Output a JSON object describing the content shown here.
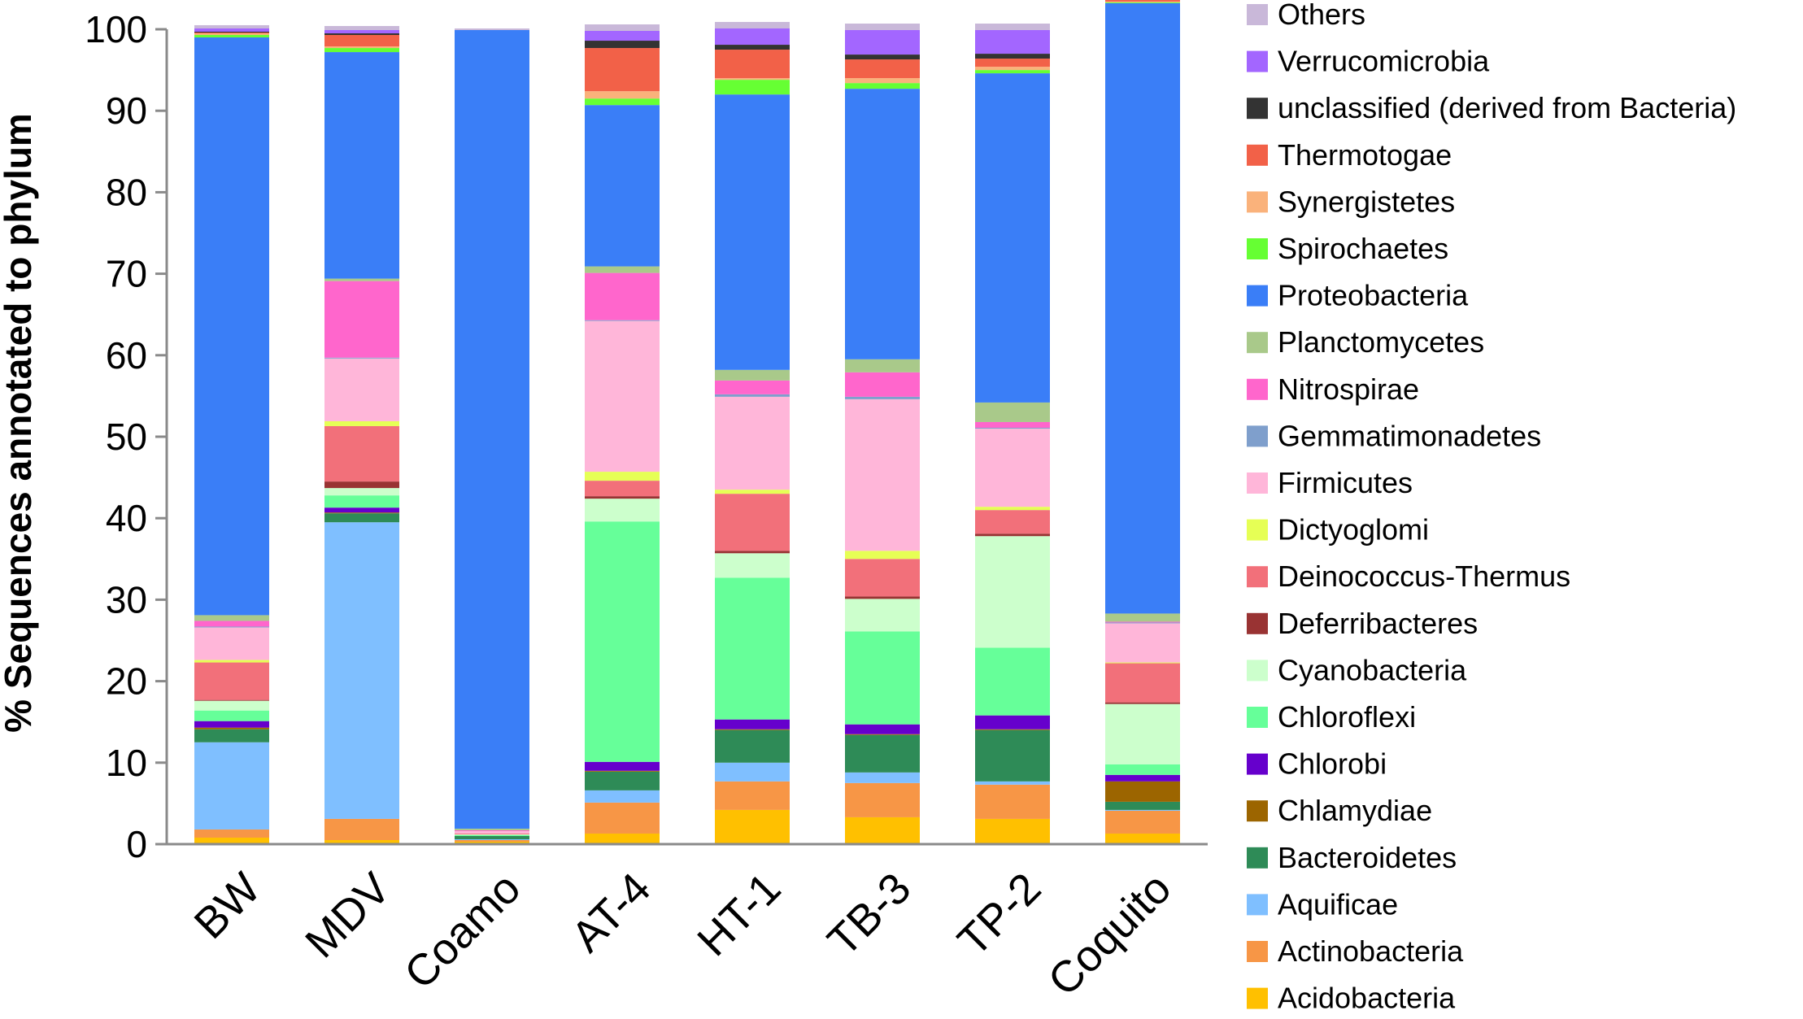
{
  "chart_data": {
    "type": "bar",
    "stacked": true,
    "title": "",
    "xlabel": "",
    "ylabel": "% Sequences annotated to phylum",
    "ylim": [
      0,
      100
    ],
    "yticks": [
      0,
      10,
      20,
      30,
      40,
      50,
      60,
      70,
      80,
      90,
      100
    ],
    "categories": [
      "BW",
      "MDV",
      "Coamo",
      "AT-4",
      "HT-1",
      "TB-3",
      "TP-2",
      "Coquito"
    ],
    "legend_position": "right",
    "series": [
      {
        "name": "Acidobacteria",
        "color": "#FFC000",
        "values": [
          0.8,
          0.5,
          0.3,
          1.3,
          4.2,
          3.3,
          3.1,
          1.3
        ]
      },
      {
        "name": "Actinobacteria",
        "color": "#F79646",
        "values": [
          1.0,
          2.6,
          0.2,
          3.8,
          3.5,
          4.2,
          4.2,
          2.8
        ]
      },
      {
        "name": "Aquificae",
        "color": "#7FBFFF",
        "values": [
          10.7,
          36.4,
          0.1,
          1.5,
          2.3,
          1.3,
          0.4,
          0.1
        ]
      },
      {
        "name": "Bacteroidetes",
        "color": "#2E8B57",
        "values": [
          1.6,
          1.1,
          0.4,
          2.3,
          4.0,
          4.6,
          6.3,
          1.0
        ]
      },
      {
        "name": "Chlamydiae",
        "color": "#9C6500",
        "values": [
          0.2,
          0.1,
          0.0,
          0.1,
          0.1,
          0.1,
          0.1,
          2.5
        ]
      },
      {
        "name": "Chlorobi",
        "color": "#6600CC",
        "values": [
          0.8,
          0.6,
          0.0,
          1.1,
          1.2,
          1.2,
          1.7,
          0.8
        ]
      },
      {
        "name": "Chloroflexi",
        "color": "#66FF99",
        "values": [
          1.3,
          1.5,
          0.1,
          29.5,
          17.4,
          11.4,
          8.3,
          1.3
        ]
      },
      {
        "name": "Cyanobacteria",
        "color": "#CCFFCC",
        "values": [
          1.2,
          0.9,
          0.1,
          2.8,
          3.0,
          4.0,
          13.7,
          7.4
        ]
      },
      {
        "name": "Deferribacteres",
        "color": "#993333",
        "values": [
          0.1,
          0.8,
          0.0,
          0.3,
          0.3,
          0.3,
          0.3,
          0.2
        ]
      },
      {
        "name": "Deinococcus-Thermus",
        "color": "#F2707A",
        "values": [
          4.6,
          6.8,
          0.1,
          1.9,
          7.0,
          4.6,
          2.9,
          4.8
        ]
      },
      {
        "name": "Dictyoglomi",
        "color": "#E6FF55",
        "values": [
          0.3,
          0.6,
          0.0,
          1.1,
          0.5,
          1.0,
          0.4,
          0.1
        ]
      },
      {
        "name": "Firmicutes",
        "color": "#FFB6D9",
        "values": [
          4.0,
          7.7,
          0.3,
          18.5,
          11.4,
          18.6,
          9.6,
          4.8
        ]
      },
      {
        "name": "Gemmatimonadetes",
        "color": "#7F9FCC",
        "values": [
          0.1,
          0.1,
          0.0,
          0.1,
          0.3,
          0.3,
          0.1,
          0.1
        ]
      },
      {
        "name": "Nitrospirae",
        "color": "#FF66CC",
        "values": [
          0.7,
          9.4,
          0.1,
          5.8,
          1.7,
          3.0,
          0.7,
          0.1
        ]
      },
      {
        "name": "Planctomycetes",
        "color": "#A9C98A",
        "values": [
          0.7,
          0.3,
          0.2,
          0.8,
          1.3,
          1.6,
          2.4,
          1.0
        ]
      },
      {
        "name": "Proteobacteria",
        "color": "#3A7EF7",
        "values": [
          70.9,
          27.8,
          98.0,
          19.8,
          33.8,
          33.2,
          40.4,
          74.9
        ]
      },
      {
        "name": "Spirochaetes",
        "color": "#66FF33",
        "values": [
          0.3,
          0.5,
          0.0,
          0.8,
          1.8,
          0.7,
          0.4,
          0.1
        ]
      },
      {
        "name": "Synergistetes",
        "color": "#FAB27B",
        "values": [
          0.2,
          0.2,
          0.0,
          0.9,
          0.2,
          0.6,
          0.4,
          0.1
        ]
      },
      {
        "name": "Thermotogae",
        "color": "#F26148",
        "values": [
          0.1,
          1.4,
          0.0,
          5.3,
          3.5,
          2.3,
          1.0,
          0.3
        ]
      },
      {
        "name": "unclassified (derived from Bacteria)",
        "color": "#333333",
        "values": [
          0.1,
          0.2,
          0.0,
          0.9,
          0.6,
          0.6,
          0.6,
          0.3
        ]
      },
      {
        "name": "Verrucomicrobia",
        "color": "#A366FF",
        "values": [
          0.4,
          0.4,
          0.0,
          1.2,
          2.0,
          3.0,
          2.9,
          0.5
        ]
      },
      {
        "name": "Others",
        "color": "#C9B8D9",
        "values": [
          0.4,
          0.5,
          0.2,
          0.8,
          0.8,
          0.8,
          0.8,
          0.5
        ]
      }
    ]
  }
}
